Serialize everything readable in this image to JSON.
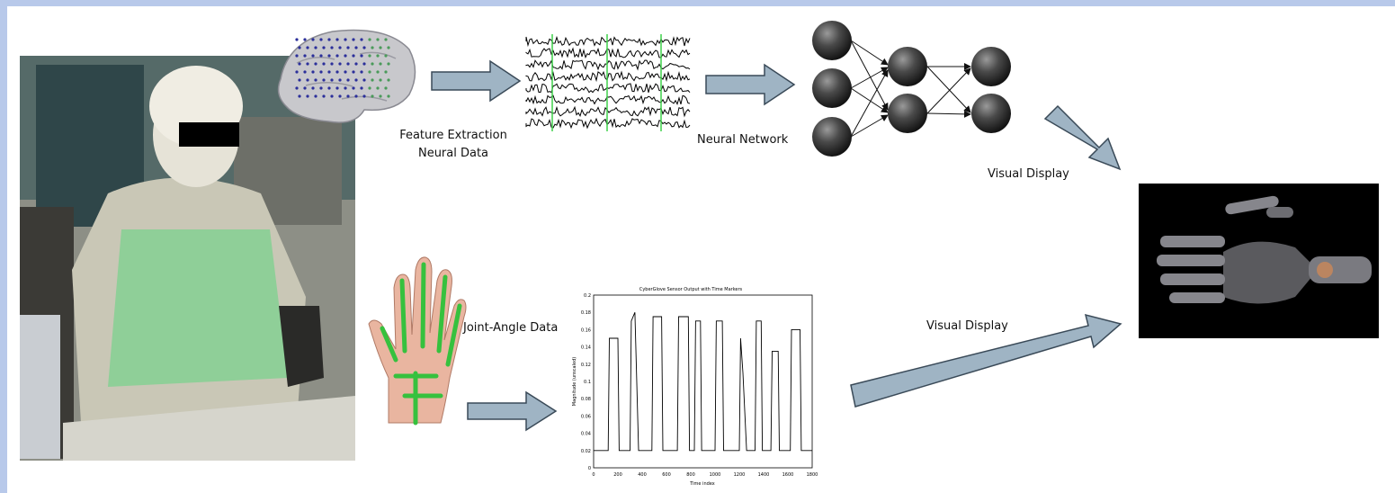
{
  "labels": {
    "feature_extraction": "Feature Extraction",
    "neural_data": "Neural Data",
    "neural_network": "Neural Network",
    "visual_display_top": "Visual Display",
    "joint_angle_data": "Joint-Angle Data",
    "visual_display_bottom": "Visual Display"
  },
  "glove_chart": {
    "title": "CyberGlove Sensor Output with Time Markers",
    "xlabel": "Time index",
    "ylabel": "Magnitude (unscaled)",
    "x_ticks": [
      "0",
      "200",
      "400",
      "600",
      "800",
      "1000",
      "1200",
      "1400",
      "1600",
      "1800"
    ],
    "y_ticks": [
      "0",
      "0.02",
      "0.04",
      "0.06",
      "0.08",
      "0.1",
      "0.12",
      "0.14",
      "0.16",
      "0.18",
      "0.2"
    ],
    "xlim": [
      0,
      1800
    ],
    "ylim": [
      0,
      0.2
    ]
  },
  "colors": {
    "frame": "#b8c9ea",
    "arrow_fill": "#9fb4c4",
    "arrow_stroke": "#3a4a58",
    "eeg_marker": "#3fd04a",
    "glove_overlay": "#36c13e"
  },
  "icons": [
    "patient-photo",
    "brain-electrode-grid",
    "eeg-traces",
    "neural-network",
    "hand-glove-sensors",
    "robotic-hand-render"
  ]
}
